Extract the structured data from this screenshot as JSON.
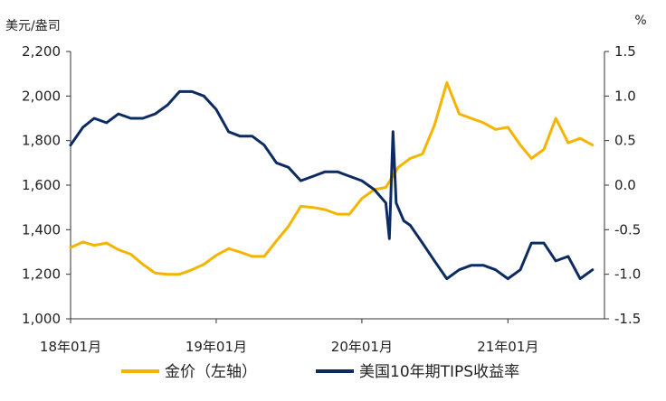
{
  "chart_data": {
    "type": "line",
    "title": "",
    "y_left": {
      "label": "美元/盎司",
      "range": [
        1000,
        2200
      ],
      "ticks": [
        1000,
        1200,
        1400,
        1600,
        1800,
        2000,
        2200
      ],
      "tick_labels": [
        "1,000",
        "1,200",
        "1,400",
        "1,600",
        "1,800",
        "2,000",
        "2,200"
      ]
    },
    "y_right": {
      "label": "%",
      "range": [
        -1.5,
        1.5
      ],
      "ticks": [
        -1.5,
        -1.0,
        -0.5,
        0.0,
        0.5,
        1.0,
        1.5
      ],
      "tick_labels": [
        "-1.5",
        "-1.0",
        "-0.5",
        "0.0",
        "0.5",
        "1.0",
        "1.5"
      ]
    },
    "x_axis": {
      "range": [
        "2018-01-01",
        "2021-08-31"
      ],
      "ticks": [
        "2018-01-01",
        "2019-01-01",
        "2020-01-01",
        "2021-01-01"
      ],
      "tick_labels": [
        "18年01月",
        "19年01月",
        "20年01月",
        "21年01月"
      ]
    },
    "grid": false,
    "legend_position": "bottom",
    "series": [
      {
        "name": "金价（左轴）",
        "axis": "left",
        "color": "#F5B400",
        "x": [
          "2018-01-01",
          "2018-02-01",
          "2018-03-01",
          "2018-04-01",
          "2018-05-01",
          "2018-06-01",
          "2018-07-01",
          "2018-08-01",
          "2018-09-01",
          "2018-10-01",
          "2018-11-01",
          "2018-12-01",
          "2019-01-01",
          "2019-02-01",
          "2019-03-01",
          "2019-04-01",
          "2019-05-01",
          "2019-06-01",
          "2019-07-01",
          "2019-08-01",
          "2019-09-01",
          "2019-10-01",
          "2019-11-01",
          "2019-12-01",
          "2020-01-01",
          "2020-02-01",
          "2020-03-01",
          "2020-04-01",
          "2020-05-01",
          "2020-06-01",
          "2020-07-01",
          "2020-08-01",
          "2020-09-01",
          "2020-10-01",
          "2020-11-01",
          "2020-12-01",
          "2021-01-01",
          "2021-02-01",
          "2021-03-01",
          "2021-04-01",
          "2021-05-01",
          "2021-06-01",
          "2021-07-01",
          "2021-08-01"
        ],
        "values": [
          1320,
          1345,
          1330,
          1340,
          1310,
          1290,
          1245,
          1205,
          1200,
          1200,
          1220,
          1245,
          1285,
          1315,
          1300,
          1280,
          1280,
          1350,
          1415,
          1505,
          1500,
          1490,
          1470,
          1470,
          1540,
          1580,
          1590,
          1680,
          1720,
          1740,
          1870,
          2060,
          1920,
          1900,
          1880,
          1850,
          1860,
          1780,
          1720,
          1760,
          1900,
          1790,
          1810,
          1780
        ]
      },
      {
        "name": "美国10年期TIPS收益率",
        "axis": "right",
        "color": "#0D2B63",
        "x": [
          "2018-01-01",
          "2018-02-01",
          "2018-03-01",
          "2018-04-01",
          "2018-05-01",
          "2018-06-01",
          "2018-07-01",
          "2018-08-01",
          "2018-09-01",
          "2018-10-01",
          "2018-11-01",
          "2018-12-01",
          "2019-01-01",
          "2019-02-01",
          "2019-03-01",
          "2019-04-01",
          "2019-05-01",
          "2019-06-01",
          "2019-07-01",
          "2019-08-01",
          "2019-09-01",
          "2019-10-01",
          "2019-11-01",
          "2019-12-01",
          "2020-01-01",
          "2020-02-01",
          "2020-03-01",
          "2020-03-10",
          "2020-03-19",
          "2020-03-27",
          "2020-04-15",
          "2020-05-01",
          "2020-06-01",
          "2020-07-01",
          "2020-08-01",
          "2020-09-01",
          "2020-10-01",
          "2020-11-01",
          "2020-12-01",
          "2021-01-01",
          "2021-02-01",
          "2021-03-01",
          "2021-04-01",
          "2021-05-01",
          "2021-06-01",
          "2021-07-01",
          "2021-08-01"
        ],
        "values": [
          0.45,
          0.65,
          0.75,
          0.7,
          0.8,
          0.75,
          0.75,
          0.8,
          0.9,
          1.05,
          1.05,
          1.0,
          0.85,
          0.6,
          0.55,
          0.55,
          0.45,
          0.25,
          0.2,
          0.05,
          0.1,
          0.15,
          0.15,
          0.1,
          0.05,
          -0.05,
          -0.2,
          -0.6,
          0.6,
          -0.2,
          -0.4,
          -0.45,
          -0.65,
          -0.85,
          -1.05,
          -0.95,
          -0.9,
          -0.9,
          -0.95,
          -1.05,
          -0.95,
          -0.65,
          -0.65,
          -0.85,
          -0.8,
          -1.05,
          -0.95
        ]
      }
    ]
  }
}
